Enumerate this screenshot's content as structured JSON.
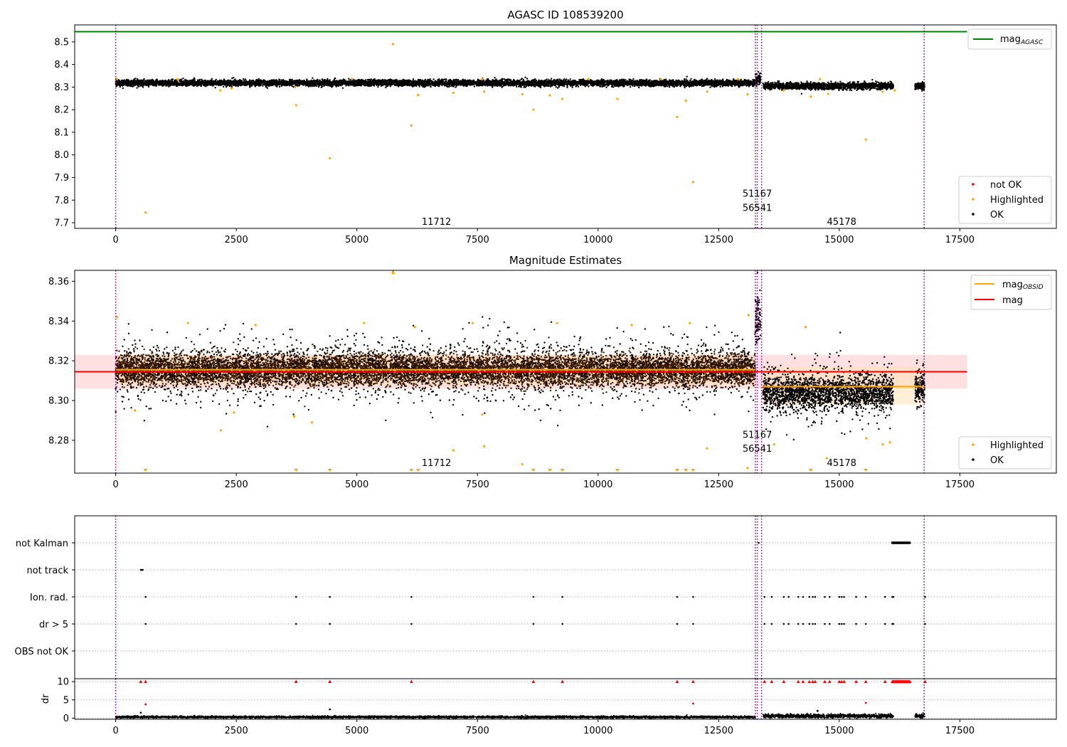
{
  "colors": {
    "ok": "#000000",
    "highlighted": "#ffa500",
    "not_ok": "#ff0000",
    "mag_agasc_line": "#008000",
    "mag_line": "#ff0000",
    "mag_band": "#ffcccc",
    "obsid_line": "#ffa500",
    "obs_marker": "#800080",
    "grid": "#b0b0b0",
    "dense_band_1": "#3a1800",
    "dense_band_2": "#241a05"
  },
  "chart_data": [
    {
      "type": "scatter",
      "title": "AGASC ID 108539200",
      "xlim": [
        -850,
        19500
      ],
      "ylim": [
        7.675,
        8.575
      ],
      "xticks": [
        0,
        2500,
        5000,
        7500,
        10000,
        12500,
        15000,
        17500
      ],
      "yticks": [
        7.7,
        7.8,
        7.9,
        8.0,
        8.1,
        8.2,
        8.3,
        8.4,
        8.5
      ],
      "xtick_labels": [
        "0",
        "2500",
        "5000",
        "7500",
        "10000",
        "12500",
        "15000",
        "17500"
      ],
      "ytick_labels": [
        "7.7",
        "7.8",
        "7.9",
        "8.0",
        "8.1",
        "8.2",
        "8.3",
        "8.4",
        "8.5"
      ],
      "mag_agasc": 8.545,
      "mag_agasc_xrange": [
        -850,
        17650
      ],
      "ok_segments": [
        {
          "x0": 0,
          "x1": 13260,
          "y_center": 8.318,
          "y_spread": 0.012,
          "density": 1.0
        },
        {
          "x0": 13260,
          "x1": 13370,
          "y_center": 8.335,
          "y_spread": 0.025,
          "density": 1.0
        },
        {
          "x0": 13420,
          "x1": 16120,
          "y_center": 8.305,
          "y_spread": 0.013,
          "density": 1.0
        },
        {
          "x0": 16570,
          "x1": 16770,
          "y_center": 8.305,
          "y_spread": 0.013,
          "density": 1.0
        }
      ],
      "highlighted_points": [
        {
          "x": 30,
          "y": 8.335
        },
        {
          "x": 620,
          "y": 7.745
        },
        {
          "x": 1280,
          "y": 8.335
        },
        {
          "x": 2170,
          "y": 8.285
        },
        {
          "x": 2400,
          "y": 8.295
        },
        {
          "x": 3740,
          "y": 8.22
        },
        {
          "x": 3720,
          "y": 8.3
        },
        {
          "x": 4440,
          "y": 7.985
        },
        {
          "x": 5750,
          "y": 8.49
        },
        {
          "x": 6130,
          "y": 8.13
        },
        {
          "x": 6270,
          "y": 8.265
        },
        {
          "x": 7000,
          "y": 8.275
        },
        {
          "x": 7640,
          "y": 8.28
        },
        {
          "x": 8430,
          "y": 8.268
        },
        {
          "x": 8660,
          "y": 8.2
        },
        {
          "x": 9000,
          "y": 8.263
        },
        {
          "x": 9260,
          "y": 8.248
        },
        {
          "x": 10400,
          "y": 8.248
        },
        {
          "x": 11640,
          "y": 8.168
        },
        {
          "x": 11820,
          "y": 8.24
        },
        {
          "x": 11970,
          "y": 7.88
        },
        {
          "x": 12260,
          "y": 8.28
        },
        {
          "x": 13100,
          "y": 8.268
        },
        {
          "x": 13850,
          "y": 8.285
        },
        {
          "x": 14410,
          "y": 8.258
        },
        {
          "x": 14770,
          "y": 8.27
        },
        {
          "x": 15550,
          "y": 8.068
        },
        {
          "x": 15900,
          "y": 8.28
        },
        {
          "x": 16150,
          "y": 8.285
        },
        {
          "x": 4900,
          "y": 8.335
        },
        {
          "x": 7600,
          "y": 8.335
        },
        {
          "x": 9800,
          "y": 8.335
        },
        {
          "x": 11300,
          "y": 8.335
        },
        {
          "x": 14600,
          "y": 8.335
        },
        {
          "x": 12900,
          "y": 8.335
        }
      ],
      "obs_lines": [
        0,
        13260,
        13300,
        13390,
        16760
      ],
      "obs_labels": [
        {
          "text": "51167",
          "x": 13300,
          "y": 7.815
        },
        {
          "text": "56541",
          "x": 13300,
          "y": 7.752
        },
        {
          "text": "11712",
          "x": 6650,
          "y": 7.69
        },
        {
          "text": "45178",
          "x": 15050,
          "y": 7.69
        }
      ],
      "legend": {
        "top_right": [
          {
            "label": "mag",
            "sub": "AGASC",
            "marker": "line",
            "color_key": "mag_agasc_line"
          }
        ],
        "bottom_right": [
          {
            "label": "not OK",
            "marker": "dot",
            "color_key": "not_ok"
          },
          {
            "label": "Highlighted",
            "marker": "dot",
            "color_key": "highlighted"
          },
          {
            "label": "OK",
            "marker": "dot",
            "color_key": "ok"
          }
        ]
      }
    },
    {
      "type": "scatter",
      "title": "Magnitude Estimates",
      "xlim": [
        -850,
        19500
      ],
      "ylim": [
        8.2635,
        8.3655
      ],
      "xticks": [
        0,
        2500,
        5000,
        7500,
        10000,
        12500,
        15000,
        17500
      ],
      "yticks": [
        8.28,
        8.3,
        8.32,
        8.34,
        8.36
      ],
      "xtick_labels": [
        "0",
        "2500",
        "5000",
        "7500",
        "10000",
        "12500",
        "15000",
        "17500"
      ],
      "ytick_labels": [
        "8.28",
        "8.30",
        "8.32",
        "8.34",
        "8.36"
      ],
      "mag": 8.3145,
      "mag_band": [
        8.306,
        8.323
      ],
      "mag_xrange": [
        -850,
        17650
      ],
      "obsid_segments": [
        {
          "x0": 0,
          "x1": 13260,
          "y": 8.3155,
          "band": [
            8.308,
            8.323
          ]
        },
        {
          "x0": 13400,
          "x1": 16760,
          "y": 8.307,
          "band": [
            8.298,
            8.317
          ]
        }
      ],
      "ok_segments": [
        {
          "x0": 0,
          "x1": 13260,
          "y_center": 8.3155,
          "y_spread": 0.007,
          "density": 1.0
        },
        {
          "x0": 13260,
          "x1": 13370,
          "y_center": 8.34,
          "y_spread": 0.01,
          "density": 1.0
        },
        {
          "x0": 13420,
          "x1": 16120,
          "y_center": 8.304,
          "y_spread": 0.007,
          "density": 1.0
        },
        {
          "x0": 16570,
          "x1": 16770,
          "y_center": 8.306,
          "y_spread": 0.007,
          "density": 1.0
        }
      ],
      "highlighted_points": [
        {
          "x": 30,
          "y": 8.342
        },
        {
          "x": 400,
          "y": 8.295
        },
        {
          "x": 2180,
          "y": 8.285
        },
        {
          "x": 2450,
          "y": 8.294
        },
        {
          "x": 3700,
          "y": 8.292
        },
        {
          "x": 4070,
          "y": 8.289
        },
        {
          "x": 5750,
          "y": 8.365
        },
        {
          "x": 7000,
          "y": 8.275
        },
        {
          "x": 7640,
          "y": 8.277
        },
        {
          "x": 7600,
          "y": 8.293
        },
        {
          "x": 8430,
          "y": 8.268
        },
        {
          "x": 12260,
          "y": 8.276
        },
        {
          "x": 13100,
          "y": 8.266
        },
        {
          "x": 13120,
          "y": 8.343
        },
        {
          "x": 13650,
          "y": 8.278
        },
        {
          "x": 14740,
          "y": 8.271
        },
        {
          "x": 15560,
          "y": 8.281
        },
        {
          "x": 15900,
          "y": 8.278
        },
        {
          "x": 16050,
          "y": 8.279
        },
        {
          "x": 1500,
          "y": 8.339
        },
        {
          "x": 2900,
          "y": 8.338
        },
        {
          "x": 5150,
          "y": 8.339
        },
        {
          "x": 6200,
          "y": 8.337
        },
        {
          "x": 7400,
          "y": 8.339
        },
        {
          "x": 9150,
          "y": 8.339
        },
        {
          "x": 10700,
          "y": 8.338
        },
        {
          "x": 11900,
          "y": 8.339
        },
        {
          "x": 14300,
          "y": 8.337
        }
      ],
      "lower_limit_markers": [
        620,
        3740,
        4440,
        6130,
        6270,
        8660,
        9000,
        9260,
        10400,
        11640,
        11820,
        11970,
        14410,
        15550
      ],
      "obs_lines": [
        0,
        13260,
        13300,
        13390,
        16760
      ],
      "obs_labels": [
        {
          "text": "51167",
          "x": 13300,
          "y": 8.2813
        },
        {
          "text": "56541",
          "x": 13300,
          "y": 8.2742
        },
        {
          "text": "11712",
          "x": 6650,
          "y": 8.2671
        },
        {
          "text": "45178",
          "x": 15050,
          "y": 8.2671
        }
      ],
      "legend": {
        "top_right": [
          {
            "label": "mag",
            "sub": "OBSID",
            "marker": "line",
            "color_key": "obsid_line"
          },
          {
            "label": "mag",
            "sub": "",
            "marker": "line",
            "color_key": "mag_line"
          }
        ],
        "bottom_right": [
          {
            "label": "Highlighted",
            "marker": "dot",
            "color_key": "highlighted"
          },
          {
            "label": "OK",
            "marker": "dot",
            "color_key": "ok"
          }
        ]
      }
    },
    {
      "type": "scatter",
      "title": "",
      "xlim": [
        -850,
        19500
      ],
      "categories": [
        "not Kalman",
        "not track",
        "Ion. rad.",
        "dr > 5",
        "OBS not OK"
      ],
      "flags": {
        "not Kalman": {
          "ranges": [
            [
              16100,
              16470
            ]
          ],
          "points": [
            13330
          ]
        },
        "not track": {
          "ranges": [],
          "points": [
            520,
            540,
            560
          ]
        },
        "Ion. rad.": {
          "ranges": [],
          "points": [
            620,
            3740,
            4440,
            6130,
            8660,
            9260,
            11640,
            11970,
            13450,
            13600,
            13850,
            13950,
            14150,
            14250,
            14380,
            14450,
            14500,
            14700,
            14800,
            15000,
            15050,
            15100,
            15350,
            15550,
            15950,
            16100,
            16120,
            16780
          ]
        },
        "dr > 5": {
          "ranges": [],
          "points": [
            620,
            3740,
            4440,
            6130,
            8660,
            9260,
            11640,
            11970,
            13450,
            13600,
            13850,
            13950,
            14150,
            14250,
            14380,
            14450,
            14500,
            14700,
            14800,
            15000,
            15050,
            15100,
            15350,
            15550,
            15950,
            16100,
            16120,
            16780
          ]
        },
        "OBS not OK": {
          "ranges": [],
          "points": []
        }
      },
      "obs_lines": [
        0,
        13260,
        13300,
        13390,
        16760
      ]
    },
    {
      "type": "scatter",
      "title": "",
      "xlim": [
        -850,
        19500
      ],
      "ylim": [
        -0.3,
        10.8
      ],
      "ylabel": "dr",
      "xticks": [
        0,
        2500,
        5000,
        7500,
        10000,
        12500,
        15000,
        17500
      ],
      "yticks": [
        0,
        5,
        10
      ],
      "xtick_labels": [
        "0",
        "2500",
        "5000",
        "7500",
        "10000",
        "12500",
        "15000",
        "17500"
      ],
      "ytick_labels": [
        "0",
        "5",
        "10"
      ],
      "ok_segments": [
        {
          "x0": 0,
          "x1": 13260,
          "y_center": 0.3,
          "y_spread": 0.25,
          "density": 1.0
        },
        {
          "x0": 13420,
          "x1": 16120,
          "y_center": 0.6,
          "y_spread": 0.45,
          "density": 1.0
        },
        {
          "x0": 16570,
          "x1": 16770,
          "y_center": 0.6,
          "y_spread": 0.4,
          "density": 1.0
        }
      ],
      "clipped_not_ok_x": [
        520,
        620,
        3740,
        4440,
        6130,
        8660,
        9260,
        11640,
        11970,
        13450,
        13600,
        13850,
        14150,
        14250,
        14380,
        14450,
        14500,
        14700,
        14800,
        15000,
        15050,
        15100,
        15350,
        15550,
        15950,
        16780
      ],
      "clipped_not_ok_range": [
        16100,
        16470
      ],
      "outlier_points": [
        {
          "x": 520,
          "y": 1.5,
          "color_key": "ok"
        },
        {
          "x": 620,
          "y": 3.8,
          "color_key": "not_ok"
        },
        {
          "x": 4440,
          "y": 2.4,
          "color_key": "ok"
        },
        {
          "x": 11970,
          "y": 4.0,
          "color_key": "not_ok"
        },
        {
          "x": 15550,
          "y": 4.2,
          "color_key": "not_ok"
        },
        {
          "x": 14550,
          "y": 2.0,
          "color_key": "ok"
        }
      ],
      "obs_lines": [
        0,
        13260,
        13300,
        13390,
        16760
      ]
    }
  ]
}
